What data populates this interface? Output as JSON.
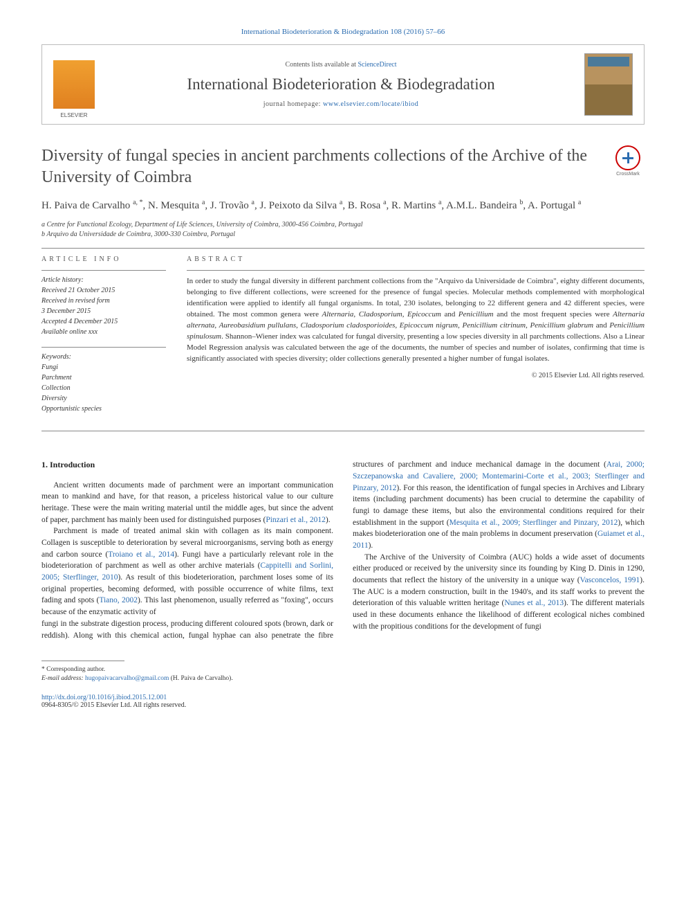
{
  "header": {
    "citation": "International Biodeterioration & Biodegradation 108 (2016) 57–66",
    "contents_prefix": "Contents lists available at ",
    "contents_link": "ScienceDirect",
    "journal": "International Biodeterioration & Biodegradation",
    "homepage_prefix": "journal homepage: ",
    "homepage_url": "www.elsevier.com/locate/ibiod"
  },
  "article": {
    "title": "Diversity of fungal species in ancient parchments collections of the Archive of the University of Coimbra",
    "crossmark_label": "CrossMark",
    "authors_html": "H. Paiva de Carvalho <sup>a, *</sup>, N. Mesquita <sup>a</sup>, J. Trovão <sup>a</sup>, J. Peixoto da Silva <sup>a</sup>, B. Rosa <sup>a</sup>, R. Martins <sup>a</sup>, A.M.L. Bandeira <sup>b</sup>, A. Portugal <sup>a</sup>",
    "affiliations": [
      "a Centre for Functional Ecology, Department of Life Sciences, University of Coimbra, 3000-456 Coimbra, Portugal",
      "b Arquivo da Universidade de Coimbra, 3000-330 Coimbra, Portugal"
    ]
  },
  "info": {
    "label": "ARTICLE INFO",
    "history_header": "Article history:",
    "history": [
      "Received 21 October 2015",
      "Received in revised form",
      "3 December 2015",
      "Accepted 4 December 2015",
      "Available online xxx"
    ],
    "keywords_header": "Keywords:",
    "keywords": [
      "Fungi",
      "Parchment",
      "Collection",
      "Diversity",
      "Opportunistic species"
    ]
  },
  "abstract": {
    "label": "ABSTRACT",
    "text_html": "In order to study the fungal diversity in different parchment collections from the \"Arquivo da Universidade de Coimbra\", eighty different documents, belonging to five different collections, were screened for the presence of fungal species. Molecular methods complemented with morphological identification were applied to identify all fungal organisms. In total, 230 isolates, belonging to 22 different genera and 42 different species, were obtained. The most common genera were <i>Alternaria</i>, <i>Cladosporium</i>, <i>Epicoccum</i> and <i>Penicillium</i> and the most frequent species were <i>Alternaria alternata</i>, <i>Aureobasidium pullulans</i>, <i>Cladosporium cladosporioides</i>, <i>Epicoccum nigrum</i>, <i>Penicillium citrinum</i>, <i>Penicillium glabrum</i> and <i>Penicillium spinulosum</i>. Shannon–Wiener index was calculated for fungal diversity, presenting a low species diversity in all parchments collections. Also a Linear Model Regression analysis was calculated between the age of the documents, the number of species and number of isolates, confirming that time is significantly associated with species diversity; older collections generally presented a higher number of fungal isolates.",
    "copyright": "© 2015 Elsevier Ltd. All rights reserved."
  },
  "body": {
    "heading": "1. Introduction",
    "p1_html": "Ancient written documents made of parchment were an important communication mean to mankind and have, for that reason, a priceless historical value to our culture heritage. These were the main writing material until the middle ages, but since the advent of paper, parchment has mainly been used for distinguished purposes (<a>Pinzari et al., 2012</a>).",
    "p2_html": "Parchment is made of treated animal skin with collagen as its main component. Collagen is susceptible to deterioration by several microorganisms, serving both as energy and carbon source (<a>Troiano et al., 2014</a>). Fungi have a particularly relevant role in the biodeterioration of parchment as well as other archive materials (<a>Cappitelli and Sorlini, 2005; Sterflinger, 2010</a>). As result of this biodeterioration, parchment loses some of its original properties, becoming deformed, with possible occurrence of white films, text fading and spots (<a>Tiano, 2002</a>). This last phenomenon, usually referred as \"foxing\", occurs because of the enzymatic activity of",
    "p3_html": "fungi in the substrate digestion process, producing different coloured spots (brown, dark or reddish). Along with this chemical action, fungal hyphae can also penetrate the fibre structures of parchment and induce mechanical damage in the document (<a>Arai, 2000; Szczepanowska and Cavaliere, 2000; Montemarini-Corte et al., 2003; Sterflinger and Pinzary, 2012</a>). For this reason, the identification of fungal species in Archives and Library items (including parchment documents) has been crucial to determine the capability of fungi to damage these items, but also the environmental conditions required for their establishment in the support (<a>Mesquita et al., 2009; Sterflinger and Pinzary, 2012</a>), which makes biodeterioration one of the main problems in document preservation (<a>Guiamet et al., 2011</a>).",
    "p4_html": "The Archive of the University of Coimbra (AUC) holds a wide asset of documents either produced or received by the university since its founding by King D. Dinis in 1290, documents that reflect the history of the university in a unique way (<a>Vasconcelos, 1991</a>). The AUC is a modern construction, built in the 1940's, and its staff works to prevent the deterioration of this valuable written heritage (<a>Nunes et al., 2013</a>). The different materials used in these documents enhance the likelihood of different ecological niches combined with the propitious conditions for the development of fungi"
  },
  "footnotes": {
    "corresponding": "* Corresponding author.",
    "email_label": "E-mail address: ",
    "email": "hugopaivacarvalho@gmail.com",
    "email_suffix": " (H. Paiva de Carvalho).",
    "doi": "http://dx.doi.org/10.1016/j.ibiod.2015.12.001",
    "issn": "0964-8305/© 2015 Elsevier Ltd. All rights reserved."
  },
  "colors": {
    "link": "#2b6cb0",
    "text": "#2a2a2a",
    "rule": "#888888"
  }
}
